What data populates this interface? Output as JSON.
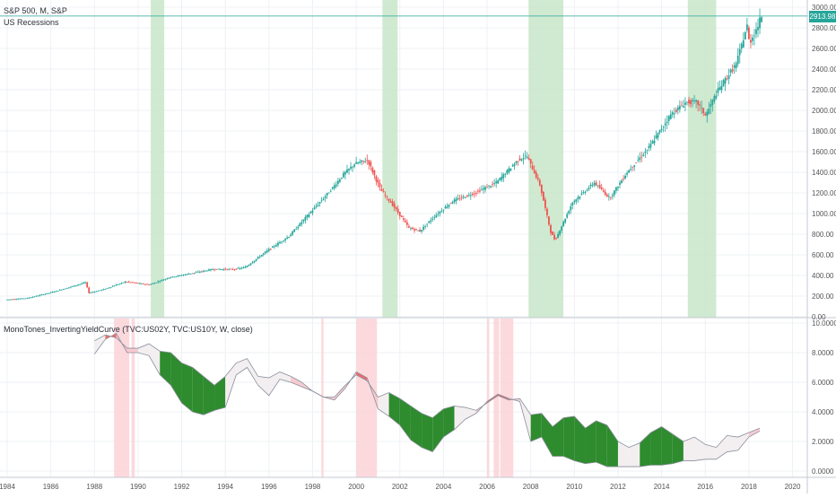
{
  "header": {
    "symbol_line": "S&P 500, M, S&P",
    "overlay_label": "US Recessions",
    "indicator_label": "MonoTones_InvertingYieldCurve (TVC:US02Y, TVC:US10Y, W, close)"
  },
  "last_price_label": "2913.98",
  "colors": {
    "up": "#26a69a",
    "down": "#ef5350",
    "recession": "#c8e6c9",
    "inversion": "#fbd0d4",
    "green_fill": "#2e8b2e",
    "grid": "#eef1f5",
    "price_line": "#26a69a"
  },
  "chart_data": [
    {
      "type": "candlestick",
      "title": "S&P 500, M, S&P",
      "y_ticks": [
        "3000.00",
        "2800.00",
        "2600.00",
        "2400.00",
        "2200.00",
        "2000.00",
        "1800.00",
        "1600.00",
        "1400.00",
        "1200.00",
        "1000.00",
        "800.00",
        "600.00",
        "400.00",
        "200.00",
        "0.00"
      ],
      "ylim": [
        0,
        3000
      ],
      "recession_bands": [
        [
          1990.58,
          1991.2
        ],
        [
          2001.2,
          2001.9
        ],
        [
          2007.9,
          2009.5
        ],
        [
          2015.2,
          2016.5
        ]
      ],
      "price_path": [
        [
          1984.0,
          165
        ],
        [
          1985.0,
          180
        ],
        [
          1986.0,
          230
        ],
        [
          1987.0,
          290
        ],
        [
          1987.7,
          335
        ],
        [
          1987.8,
          230
        ],
        [
          1988.5,
          265
        ],
        [
          1989.5,
          340
        ],
        [
          1990.6,
          310
        ],
        [
          1991.5,
          380
        ],
        [
          1992.5,
          420
        ],
        [
          1993.5,
          460
        ],
        [
          1994.5,
          460
        ],
        [
          1995.0,
          480
        ],
        [
          1996.0,
          640
        ],
        [
          1997.0,
          780
        ],
        [
          1997.8,
          970
        ],
        [
          1998.5,
          1130
        ],
        [
          1999.0,
          1250
        ],
        [
          1999.5,
          1380
        ],
        [
          2000.0,
          1480
        ],
        [
          2000.6,
          1520
        ],
        [
          2001.2,
          1230
        ],
        [
          2001.7,
          1100
        ],
        [
          2002.5,
          860
        ],
        [
          2003.0,
          830
        ],
        [
          2003.6,
          960
        ],
        [
          2004.5,
          1120
        ],
        [
          2005.5,
          1200
        ],
        [
          2006.5,
          1300
        ],
        [
          2007.5,
          1520
        ],
        [
          2007.9,
          1560
        ],
        [
          2008.5,
          1280
        ],
        [
          2009.0,
          820
        ],
        [
          2009.2,
          740
        ],
        [
          2010.0,
          1110
        ],
        [
          2011.0,
          1300
        ],
        [
          2011.7,
          1150
        ],
        [
          2012.5,
          1400
        ],
        [
          2013.5,
          1640
        ],
        [
          2014.5,
          1960
        ],
        [
          2015.2,
          2080
        ],
        [
          2015.7,
          2080
        ],
        [
          2016.1,
          1950
        ],
        [
          2016.6,
          2170
        ],
        [
          2017.0,
          2300
        ],
        [
          2017.5,
          2450
        ],
        [
          2018.0,
          2820
        ],
        [
          2018.1,
          2650
        ],
        [
          2018.5,
          2820
        ],
        [
          2018.65,
          2914
        ]
      ]
    },
    {
      "type": "area",
      "title": "MonoTones_InvertingYieldCurve (TVC:US02Y, TVC:US10Y, W, close)",
      "y_ticks": [
        "10.0000",
        "8.0000",
        "6.0000",
        "4.0000",
        "2.0000",
        "0.0000"
      ],
      "ylim": [
        0,
        10
      ],
      "inversion_bands": [
        [
          1988.9,
          1989.6
        ],
        [
          1989.7,
          1989.85
        ],
        [
          1998.4,
          1998.5
        ],
        [
          2000.0,
          2000.95
        ],
        [
          2006.0,
          2006.1
        ],
        [
          2006.3,
          2006.55
        ],
        [
          2006.6,
          2007.2
        ]
      ],
      "x_ticks": [
        "1984",
        "1986",
        "1988",
        "1990",
        "1992",
        "1994",
        "1996",
        "1998",
        "2000",
        "2002",
        "2004",
        "2006",
        "2008",
        "2010",
        "2012",
        "2014",
        "2016",
        "2018",
        "2020"
      ],
      "series": [
        {
          "name": "TVC:US10Y",
          "x": [
            1988.0,
            1988.5,
            1989.0,
            1989.5,
            1990.0,
            1990.5,
            1991.0,
            1991.5,
            1992.0,
            1992.5,
            1993.0,
            1993.5,
            1994.0,
            1994.5,
            1995.0,
            1995.5,
            1996.0,
            1996.5,
            1997.0,
            1997.5,
            1998.0,
            1998.5,
            1999.0,
            1999.5,
            2000.0,
            2000.5,
            2001.0,
            2001.5,
            2002.0,
            2002.5,
            2003.0,
            2003.5,
            2004.0,
            2004.5,
            2005.0,
            2005.5,
            2006.0,
            2006.5,
            2007.0,
            2007.5,
            2008.0,
            2008.5,
            2009.0,
            2009.5,
            2010.0,
            2010.5,
            2011.0,
            2011.5,
            2012.0,
            2012.5,
            2013.0,
            2013.5,
            2014.0,
            2014.5,
            2015.0,
            2015.5,
            2016.0,
            2016.5,
            2017.0,
            2017.5,
            2018.0,
            2018.5
          ],
          "values": [
            8.8,
            9.2,
            9.0,
            8.3,
            8.3,
            8.6,
            8.1,
            8.0,
            7.3,
            7.0,
            6.4,
            5.8,
            6.4,
            7.3,
            7.6,
            6.4,
            6.3,
            6.7,
            6.4,
            6.0,
            5.4,
            5.0,
            5.0,
            5.8,
            6.5,
            6.1,
            5.0,
            5.3,
            4.9,
            4.4,
            3.9,
            3.6,
            4.2,
            4.4,
            4.3,
            4.1,
            4.6,
            5.1,
            4.8,
            4.9,
            3.8,
            3.9,
            3.0,
            3.6,
            3.7,
            2.9,
            3.4,
            3.1,
            2.0,
            1.6,
            1.9,
            2.6,
            3.0,
            2.5,
            2.0,
            2.3,
            1.8,
            1.6,
            2.4,
            2.3,
            2.6,
            2.9
          ]
        },
        {
          "name": "TVC:US02Y",
          "x": [
            1988.0,
            1988.5,
            1989.0,
            1989.5,
            1990.0,
            1990.5,
            1991.0,
            1991.5,
            1992.0,
            1992.5,
            1993.0,
            1993.5,
            1994.0,
            1994.5,
            1995.0,
            1995.5,
            1996.0,
            1996.5,
            1997.0,
            1997.5,
            1998.0,
            1998.5,
            1999.0,
            1999.5,
            2000.0,
            2000.5,
            2001.0,
            2001.5,
            2002.0,
            2002.5,
            2003.0,
            2003.5,
            2004.0,
            2004.5,
            2005.0,
            2005.5,
            2006.0,
            2006.5,
            2007.0,
            2007.5,
            2008.0,
            2008.5,
            2009.0,
            2009.5,
            2010.0,
            2010.5,
            2011.0,
            2011.5,
            2012.0,
            2012.5,
            2013.0,
            2013.5,
            2014.0,
            2014.5,
            2015.0,
            2015.5,
            2016.0,
            2016.5,
            2017.0,
            2017.5,
            2018.0,
            2018.5
          ],
          "values": [
            7.9,
            8.9,
            9.3,
            8.0,
            8.0,
            7.8,
            6.5,
            5.8,
            4.6,
            4.0,
            3.8,
            4.1,
            4.3,
            6.5,
            7.0,
            5.8,
            5.1,
            6.2,
            6.0,
            5.7,
            5.4,
            5.0,
            4.8,
            5.6,
            6.7,
            6.3,
            4.2,
            3.7,
            3.1,
            2.1,
            1.6,
            1.3,
            2.3,
            2.8,
            3.5,
            3.9,
            4.7,
            5.2,
            4.9,
            4.7,
            2.0,
            2.3,
            1.0,
            1.0,
            0.7,
            0.5,
            0.6,
            0.3,
            0.3,
            0.3,
            0.3,
            0.4,
            0.4,
            0.5,
            0.7,
            0.7,
            0.8,
            0.8,
            1.3,
            1.4,
            2.3,
            2.7
          ]
        }
      ]
    }
  ]
}
